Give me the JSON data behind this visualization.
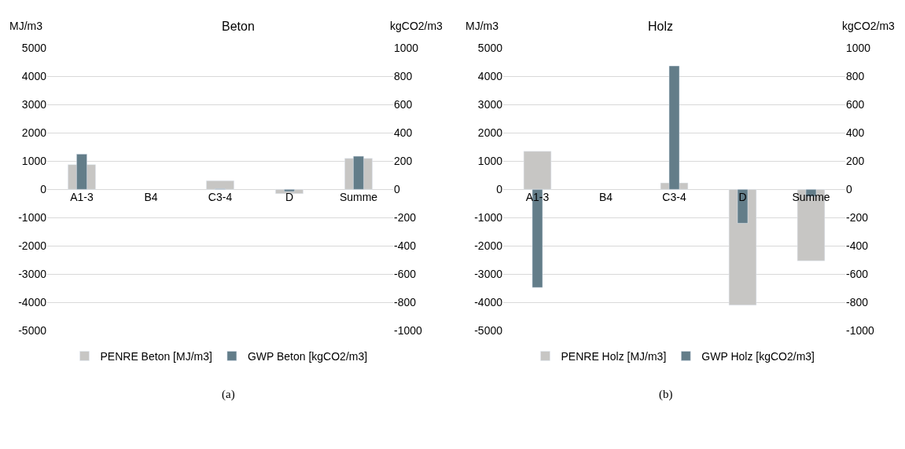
{
  "chart_data": [
    {
      "type": "bar",
      "title": "Beton",
      "ylabel": "MJ/m3",
      "y2label": "kgCO2/m3",
      "categories": [
        "A1-3",
        "B4",
        "C3-4",
        "D",
        "Summe"
      ],
      "series": [
        {
          "name": "PENRE Beton [MJ/m3]",
          "color": "#c7c6c4",
          "values": [
            880,
            null,
            310,
            -150,
            1100
          ]
        },
        {
          "name": "GWP Beton [kgCO2/m3]",
          "color": "#637d89",
          "axis": "y2",
          "values": [
            250,
            null,
            5,
            -15,
            235
          ]
        }
      ],
      "ylim": [
        -5000,
        5000
      ],
      "yticks": [
        -5000,
        -4000,
        -3000,
        -2000,
        -1000,
        0,
        1000,
        2000,
        3000,
        4000,
        5000
      ],
      "y2lim": [
        -1000,
        1000
      ],
      "y2ticks": [
        -1000,
        -800,
        -600,
        -400,
        -200,
        0,
        200,
        400,
        600,
        800,
        1000
      ],
      "grid": "y",
      "legend": "bottom",
      "annotations": [
        "(a)"
      ]
    },
    {
      "type": "bar",
      "title": "Holz",
      "ylabel": "MJ/m3",
      "y2label": "kgCO2/m3",
      "categories": [
        "A1-3",
        "B4",
        "C3-4",
        "D",
        "Summe"
      ],
      "series": [
        {
          "name": "PENRE Holz [MJ/m3]",
          "color": "#c7c6c4",
          "values": [
            1350,
            null,
            230,
            -4100,
            -2530
          ]
        },
        {
          "name": "GWP Holz [kgCO2/m3]",
          "color": "#637d89",
          "axis": "y2",
          "values": [
            -695,
            null,
            875,
            -240,
            -50
          ]
        }
      ],
      "ylim": [
        -5000,
        5000
      ],
      "yticks": [
        -5000,
        -4000,
        -3000,
        -2000,
        -1000,
        0,
        1000,
        2000,
        3000,
        4000,
        5000
      ],
      "y2lim": [
        -1000,
        1000
      ],
      "y2ticks": [
        -1000,
        -800,
        -600,
        -400,
        -200,
        0,
        200,
        400,
        600,
        800,
        1000
      ],
      "grid": "y",
      "legend": "bottom",
      "annotations": [
        "(b)"
      ]
    }
  ]
}
